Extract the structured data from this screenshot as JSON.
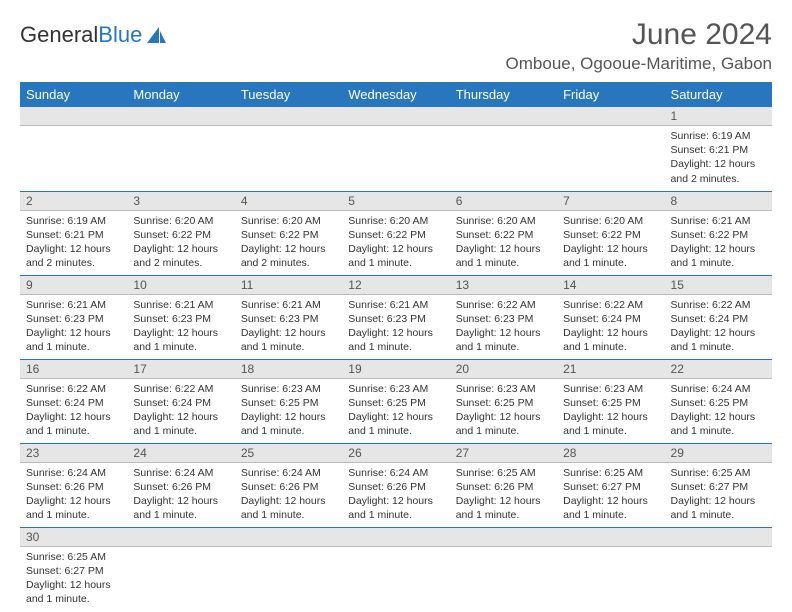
{
  "logo": {
    "text1": "General",
    "text2": "Blue"
  },
  "title": "June 2024",
  "location": "Omboue, Ogooue-Maritime, Gabon",
  "colors": {
    "header_bg": "#2876bd",
    "header_text": "#ffffff",
    "daynum_bg": "#e6e6e6",
    "row_border": "#2876bd",
    "text": "#333333",
    "title_text": "#555555"
  },
  "typography": {
    "title_fontsize": 30,
    "location_fontsize": 17,
    "th_fontsize": 13,
    "daynum_fontsize": 12,
    "cell_fontsize": 10.5
  },
  "weekdays": [
    "Sunday",
    "Monday",
    "Tuesday",
    "Wednesday",
    "Thursday",
    "Friday",
    "Saturday"
  ],
  "first_weekday_index": 6,
  "days": [
    {
      "n": 1,
      "sunrise": "6:19 AM",
      "sunset": "6:21 PM",
      "daylight": "12 hours and 2 minutes."
    },
    {
      "n": 2,
      "sunrise": "6:19 AM",
      "sunset": "6:21 PM",
      "daylight": "12 hours and 2 minutes."
    },
    {
      "n": 3,
      "sunrise": "6:20 AM",
      "sunset": "6:22 PM",
      "daylight": "12 hours and 2 minutes."
    },
    {
      "n": 4,
      "sunrise": "6:20 AM",
      "sunset": "6:22 PM",
      "daylight": "12 hours and 2 minutes."
    },
    {
      "n": 5,
      "sunrise": "6:20 AM",
      "sunset": "6:22 PM",
      "daylight": "12 hours and 1 minute."
    },
    {
      "n": 6,
      "sunrise": "6:20 AM",
      "sunset": "6:22 PM",
      "daylight": "12 hours and 1 minute."
    },
    {
      "n": 7,
      "sunrise": "6:20 AM",
      "sunset": "6:22 PM",
      "daylight": "12 hours and 1 minute."
    },
    {
      "n": 8,
      "sunrise": "6:21 AM",
      "sunset": "6:22 PM",
      "daylight": "12 hours and 1 minute."
    },
    {
      "n": 9,
      "sunrise": "6:21 AM",
      "sunset": "6:23 PM",
      "daylight": "12 hours and 1 minute."
    },
    {
      "n": 10,
      "sunrise": "6:21 AM",
      "sunset": "6:23 PM",
      "daylight": "12 hours and 1 minute."
    },
    {
      "n": 11,
      "sunrise": "6:21 AM",
      "sunset": "6:23 PM",
      "daylight": "12 hours and 1 minute."
    },
    {
      "n": 12,
      "sunrise": "6:21 AM",
      "sunset": "6:23 PM",
      "daylight": "12 hours and 1 minute."
    },
    {
      "n": 13,
      "sunrise": "6:22 AM",
      "sunset": "6:23 PM",
      "daylight": "12 hours and 1 minute."
    },
    {
      "n": 14,
      "sunrise": "6:22 AM",
      "sunset": "6:24 PM",
      "daylight": "12 hours and 1 minute."
    },
    {
      "n": 15,
      "sunrise": "6:22 AM",
      "sunset": "6:24 PM",
      "daylight": "12 hours and 1 minute."
    },
    {
      "n": 16,
      "sunrise": "6:22 AM",
      "sunset": "6:24 PM",
      "daylight": "12 hours and 1 minute."
    },
    {
      "n": 17,
      "sunrise": "6:22 AM",
      "sunset": "6:24 PM",
      "daylight": "12 hours and 1 minute."
    },
    {
      "n": 18,
      "sunrise": "6:23 AM",
      "sunset": "6:25 PM",
      "daylight": "12 hours and 1 minute."
    },
    {
      "n": 19,
      "sunrise": "6:23 AM",
      "sunset": "6:25 PM",
      "daylight": "12 hours and 1 minute."
    },
    {
      "n": 20,
      "sunrise": "6:23 AM",
      "sunset": "6:25 PM",
      "daylight": "12 hours and 1 minute."
    },
    {
      "n": 21,
      "sunrise": "6:23 AM",
      "sunset": "6:25 PM",
      "daylight": "12 hours and 1 minute."
    },
    {
      "n": 22,
      "sunrise": "6:24 AM",
      "sunset": "6:25 PM",
      "daylight": "12 hours and 1 minute."
    },
    {
      "n": 23,
      "sunrise": "6:24 AM",
      "sunset": "6:26 PM",
      "daylight": "12 hours and 1 minute."
    },
    {
      "n": 24,
      "sunrise": "6:24 AM",
      "sunset": "6:26 PM",
      "daylight": "12 hours and 1 minute."
    },
    {
      "n": 25,
      "sunrise": "6:24 AM",
      "sunset": "6:26 PM",
      "daylight": "12 hours and 1 minute."
    },
    {
      "n": 26,
      "sunrise": "6:24 AM",
      "sunset": "6:26 PM",
      "daylight": "12 hours and 1 minute."
    },
    {
      "n": 27,
      "sunrise": "6:25 AM",
      "sunset": "6:26 PM",
      "daylight": "12 hours and 1 minute."
    },
    {
      "n": 28,
      "sunrise": "6:25 AM",
      "sunset": "6:27 PM",
      "daylight": "12 hours and 1 minute."
    },
    {
      "n": 29,
      "sunrise": "6:25 AM",
      "sunset": "6:27 PM",
      "daylight": "12 hours and 1 minute."
    },
    {
      "n": 30,
      "sunrise": "6:25 AM",
      "sunset": "6:27 PM",
      "daylight": "12 hours and 1 minute."
    }
  ],
  "labels": {
    "sunrise": "Sunrise:",
    "sunset": "Sunset:",
    "daylight": "Daylight:"
  }
}
